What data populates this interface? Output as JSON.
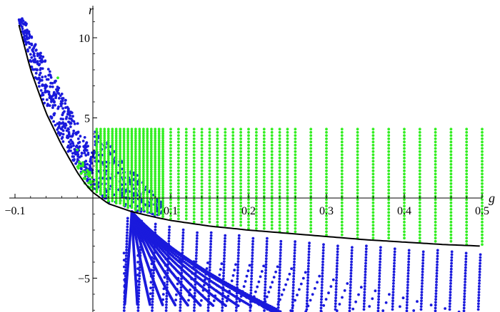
{
  "chart_data": {
    "type": "scatter",
    "title": "",
    "xlabel": "g",
    "ylabel": "r",
    "xlim": [
      -0.1,
      0.5
    ],
    "ylim": [
      -7,
      11
    ],
    "grid": false,
    "xticks": [
      -0.1,
      0.1,
      0.2,
      0.3,
      0.4,
      0.5
    ],
    "xtick_labels": [
      "−0.1",
      "0.1",
      "0.2",
      "0.3",
      "0.4",
      "0.5"
    ],
    "yticks": [
      -5,
      5,
      10
    ],
    "ytick_labels": [
      "−5",
      "5",
      "10"
    ],
    "colors": {
      "blue": "#1a1adc",
      "green": "#33ee22",
      "curve": "#000000"
    },
    "series": [
      {
        "color": "green",
        "kind": "grid-columns",
        "columns_g": [
          0.005,
          0.01,
          0.015,
          0.02,
          0.025,
          0.03,
          0.035,
          0.04,
          0.045,
          0.05,
          0.055,
          0.06,
          0.065,
          0.07,
          0.075,
          0.08,
          0.085,
          0.09,
          0.1,
          0.11,
          0.12,
          0.13,
          0.14,
          0.15,
          0.16,
          0.17,
          0.18,
          0.19,
          0.2,
          0.21,
          0.22,
          0.23,
          0.24,
          0.25,
          0.26,
          0.28,
          0.3,
          0.32,
          0.34,
          0.36,
          0.38,
          0.4,
          0.42,
          0.44,
          0.46,
          0.48,
          0.5
        ],
        "r_top": 4.3,
        "approx_points": [
          [
            -0.01,
            1.2
          ],
          [
            -0.015,
            2.0
          ],
          [
            -0.02,
            3.0
          ],
          [
            -0.045,
            7.5
          ]
        ]
      },
      {
        "color": "blue",
        "kind": "curves",
        "approx_points": [
          [
            -0.09,
            11
          ],
          [
            -0.08,
            9.5
          ],
          [
            -0.07,
            8
          ],
          [
            -0.06,
            6
          ],
          [
            -0.05,
            5
          ],
          [
            -0.04,
            4
          ],
          [
            -0.03,
            4.8
          ],
          [
            -0.02,
            6
          ],
          [
            0.0,
            3
          ],
          [
            0.02,
            2.5
          ],
          [
            0.05,
            1.5
          ],
          [
            0.08,
            0
          ],
          [
            0.1,
            -2
          ],
          [
            0.2,
            -4.5
          ],
          [
            0.25,
            -6.5
          ],
          [
            0.3,
            -6.8
          ],
          [
            0.4,
            -6.9
          ],
          [
            0.5,
            -6.8
          ]
        ]
      },
      {
        "color": "curve",
        "kind": "line",
        "points": [
          [
            -0.095,
            10.8
          ],
          [
            -0.08,
            8.0
          ],
          [
            -0.06,
            5.3
          ],
          [
            -0.04,
            3.3
          ],
          [
            -0.02,
            1.6
          ],
          [
            -0.01,
            0.9
          ],
          [
            0.0,
            0.35
          ],
          [
            0.02,
            -0.35
          ],
          [
            0.05,
            -0.85
          ],
          [
            0.08,
            -1.2
          ],
          [
            0.1,
            -1.4
          ],
          [
            0.15,
            -1.75
          ],
          [
            0.2,
            -2.0
          ],
          [
            0.25,
            -2.2
          ],
          [
            0.3,
            -2.4
          ],
          [
            0.35,
            -2.6
          ],
          [
            0.4,
            -2.75
          ],
          [
            0.45,
            -2.9
          ],
          [
            0.5,
            -3.0
          ]
        ]
      }
    ]
  }
}
